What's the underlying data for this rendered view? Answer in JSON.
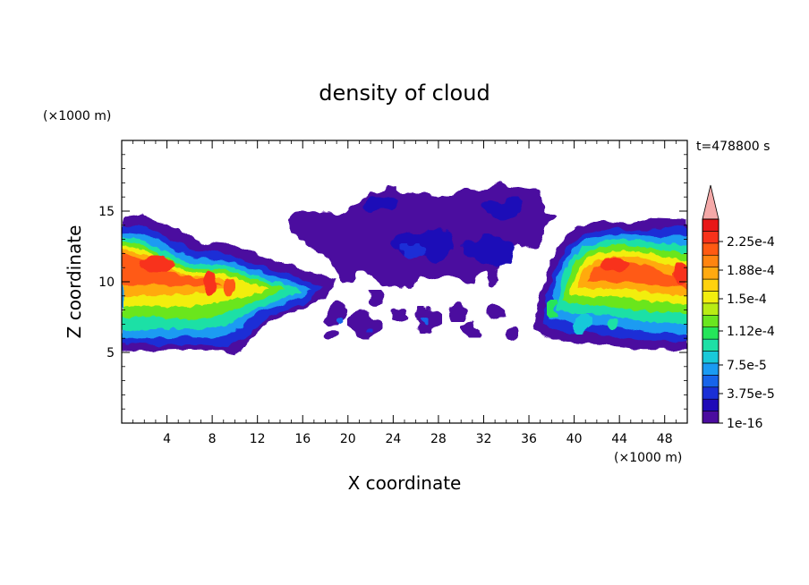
{
  "chart_data": {
    "type": "heatmap",
    "title": "density of cloud",
    "time_label": "t=478800 s",
    "xlabel": "X coordinate",
    "ylabel": "Z coordinate",
    "x_unit": "(×1000 m)",
    "y_unit": "(×1000 m)",
    "xlim": [
      0,
      50
    ],
    "ylim": [
      0,
      20
    ],
    "x_ticks": [
      "4",
      "8",
      "12",
      "16",
      "20",
      "24",
      "28",
      "32",
      "36",
      "40",
      "44",
      "48"
    ],
    "y_ticks": [
      "5",
      "10",
      "15"
    ],
    "colorbar": {
      "labels": [
        "2.25e-4",
        "1.88e-4",
        "1.5e-4",
        "1.12e-4",
        "7.5e-5",
        "3.75e-5",
        "1e-16"
      ],
      "level_colors": [
        "#4b0c9f",
        "#1f0ab8",
        "#1a2fd6",
        "#1764ea",
        "#1b9bf2",
        "#19c9d9",
        "#1ee0a6",
        "#25e55a",
        "#6ae61f",
        "#b9ec14",
        "#f2ee0f",
        "#ffd20e",
        "#ffaa10",
        "#ff8410",
        "#ff5a12",
        "#f8321a",
        "#e81818"
      ],
      "extend_color": "#f4a9a8"
    },
    "regions": [
      {
        "name": "left-cloud-mass",
        "x_range": [
          0,
          18.5
        ],
        "z_range": [
          4.8,
          14.6
        ],
        "peak": "2.25e-4"
      },
      {
        "name": "upper-thin-layer",
        "x_range": [
          15,
          38
        ],
        "z_range": [
          9.5,
          16.8
        ],
        "peak": "3.75e-5"
      },
      {
        "name": "right-cloud-mass",
        "x_range": [
          36.5,
          50
        ],
        "z_range": [
          5.2,
          14.5
        ],
        "peak": "2.25e-4"
      }
    ]
  }
}
